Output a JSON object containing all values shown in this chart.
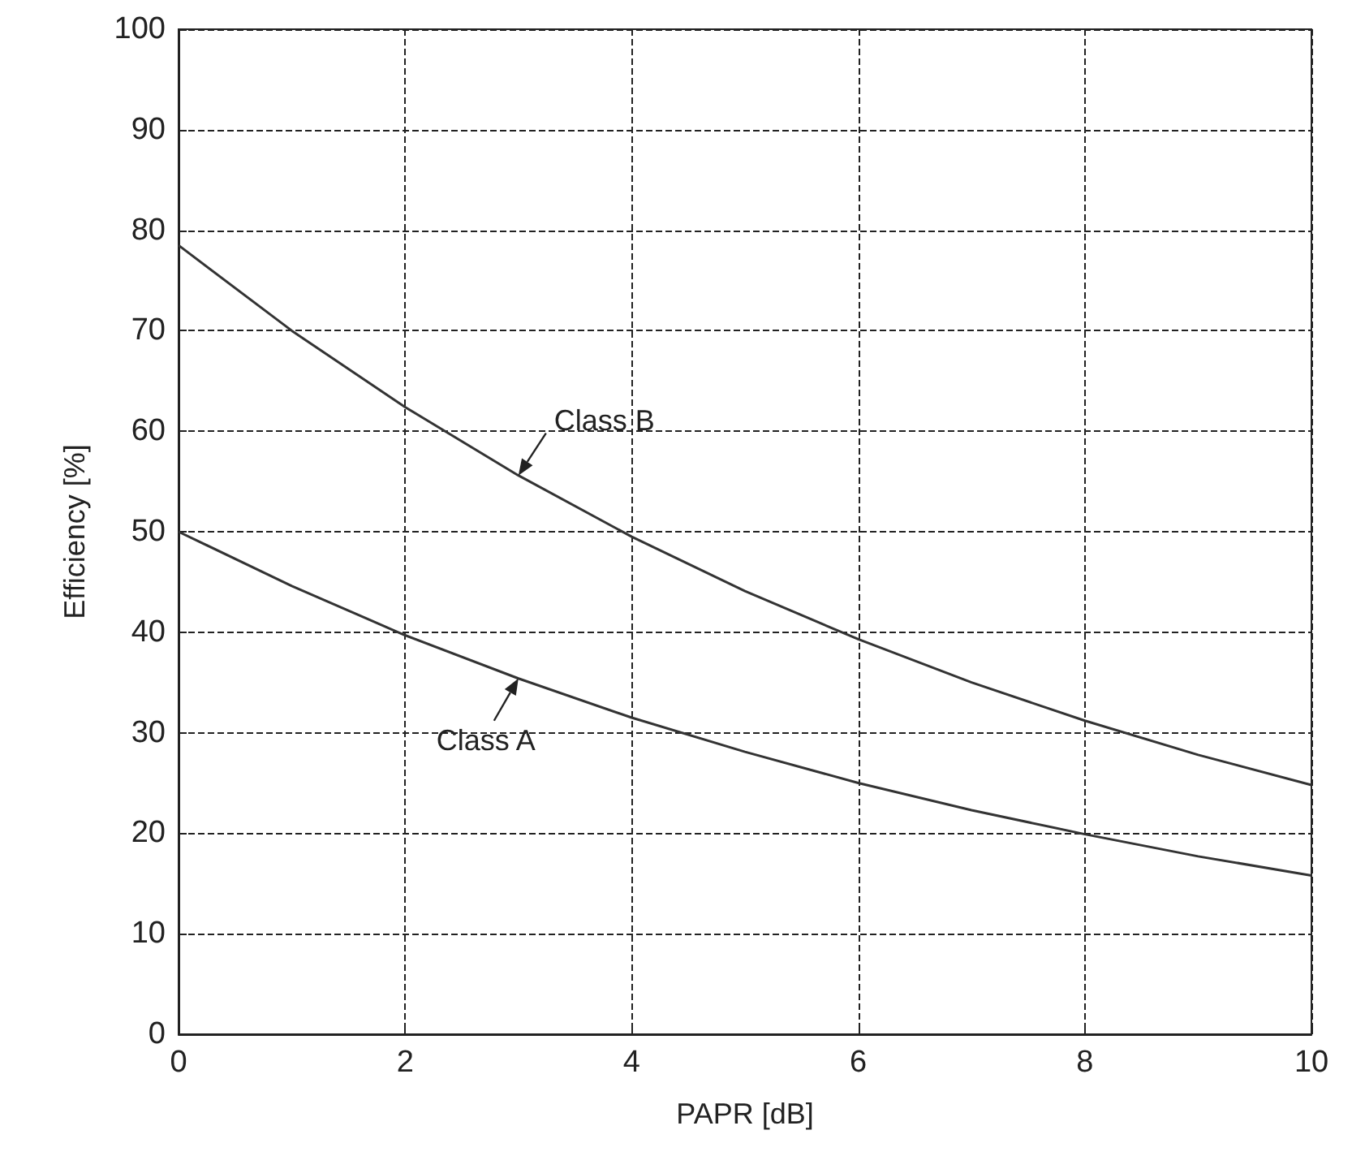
{
  "chart_data": {
    "type": "line",
    "xlabel": "PAPR [dB]",
    "ylabel": "Efficiency [%]",
    "x": [
      0,
      1,
      2,
      3,
      4,
      5,
      6,
      7,
      8,
      9,
      10
    ],
    "series": [
      {
        "name": "Class A",
        "color": "#333333",
        "values": [
          50,
          44.6,
          39.7,
          35.4,
          31.5,
          28.1,
          25,
          22.3,
          19.9,
          17.7,
          15.8
        ]
      },
      {
        "name": "Class B",
        "color": "#333333",
        "values": [
          78.5,
          70,
          62.4,
          55.6,
          49.5,
          44.1,
          39.3,
          35,
          31.2,
          27.8,
          24.8
        ]
      }
    ],
    "xlim": [
      0,
      10
    ],
    "xticks": [
      0,
      2,
      4,
      6,
      8,
      10
    ],
    "ylim": [
      0,
      100
    ],
    "yticks": [
      0,
      10,
      20,
      30,
      40,
      50,
      60,
      70,
      80,
      90,
      100
    ],
    "grid": true,
    "legend": false,
    "marker": "none",
    "line_style": "solid"
  }
}
